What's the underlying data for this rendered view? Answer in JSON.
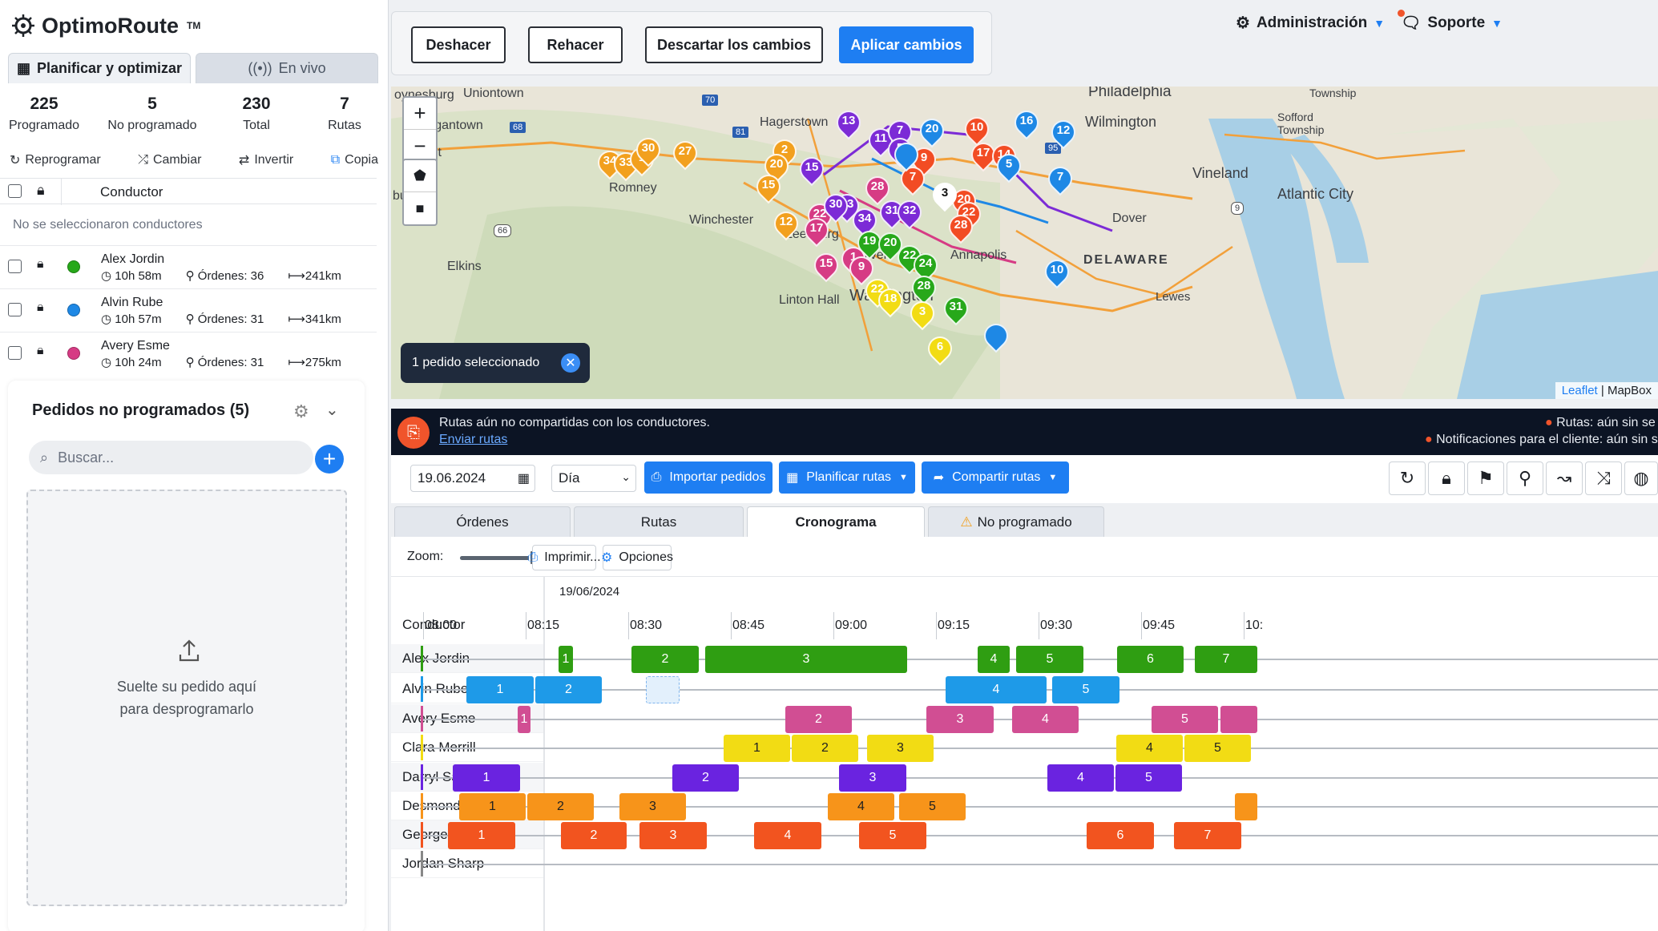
{
  "app": {
    "name": "OptimoRoute",
    "tm": "TM"
  },
  "left_tabs": {
    "plan": "Planificar y optimizar",
    "live": "En vivo"
  },
  "stats": [
    {
      "value": "225",
      "label": "Programado"
    },
    {
      "value": "5",
      "label": "No programado"
    },
    {
      "value": "230",
      "label": "Total"
    },
    {
      "value": "7",
      "label": "Rutas"
    }
  ],
  "actions": {
    "reschedule": "Reprogramar",
    "swap": "Cambiar",
    "reverse": "Invertir",
    "copy": "Copia"
  },
  "driver_header": "Conductor",
  "no_selection": "No se seleccionaron conductores",
  "drivers": [
    {
      "name": "Alex Jordin",
      "time": "10h 58m",
      "orders": "Órdenes: 36",
      "dist": "241km",
      "color": "#27a81a"
    },
    {
      "name": "Alvin Rube",
      "time": "10h 57m",
      "orders": "Órdenes: 31",
      "dist": "341km",
      "color": "#1e88e5"
    },
    {
      "name": "Avery Esme",
      "time": "10h 24m",
      "orders": "Órdenes: 31",
      "dist": "275km",
      "color": "#d63b84"
    }
  ],
  "unscheduled": {
    "title": "Pedidos no programados (5)",
    "search_placeholder": "Buscar...",
    "drop_line1": "Suelte su pedido aquí",
    "drop_line2": "para desprogramarlo"
  },
  "toolbar": {
    "undo": "Deshacer",
    "redo": "Rehacer",
    "discard": "Descartar los cambios",
    "apply": "Aplicar cambios"
  },
  "topnav": {
    "admin": "Administración",
    "support": "Soporte"
  },
  "map": {
    "labels": [
      "oynesburg",
      "Uniontown",
      "organtown",
      "Romney",
      "Winchester",
      "Leesburg",
      "Hagerstown",
      "Washington",
      "Linton Hall",
      "Silver",
      "Annapolis",
      "Philadelphia",
      "Wilmington",
      "Vineland",
      "Dover",
      "DELAWARE",
      "Atlantic City",
      "Township",
      "Sofford Township",
      "Lewes",
      "int",
      "burg",
      "Elkins",
      "ing"
    ],
    "selected_badge": "1 pedido seleccionado",
    "attribution_leaflet": "Leaflet",
    "attribution_mapbox": "MapBox",
    "road_badges": [
      "70",
      "68",
      "81",
      "66",
      "95",
      "9"
    ]
  },
  "banner": {
    "text": "Rutas aún no compartidas con los conductores.",
    "link": "Enviar rutas",
    "right1": "Rutas: aún sin se",
    "right2": "Notificaciones para el cliente: aún sin se"
  },
  "filters": {
    "date": "19.06.2024",
    "period": "Día",
    "import": "Importar pedidos",
    "plan": "Planificar rutas",
    "share": "Compartir rutas"
  },
  "view_tabs": {
    "orders": "Órdenes",
    "routes": "Rutas",
    "schedule": "Cronograma",
    "unscheduled": "No programado"
  },
  "zoombar": {
    "zoom": "Zoom:",
    "print": "Imprimir...",
    "options": "Opciones"
  },
  "timeline": {
    "date": "19/06/2024",
    "conductor": "Conductor",
    "hours": [
      "08:00",
      "08:15",
      "08:30",
      "08:45",
      "09:00",
      "09:15",
      "09:30",
      "09:45",
      "10:"
    ],
    "rows": [
      {
        "name": "Alex Jordin",
        "color": "#2f9e12",
        "stops": [
          [
            "1",
            697,
            715
          ],
          [
            "2",
            788,
            872
          ],
          [
            "3",
            880,
            1132
          ],
          [
            "4",
            1220,
            1260
          ],
          [
            "5",
            1268,
            1352
          ],
          [
            "6",
            1394,
            1477
          ],
          [
            "7",
            1491,
            1569
          ]
        ]
      },
      {
        "name": "Alvin Rube",
        "color": "#1e9ae8",
        "stops": [
          [
            "1",
            582,
            666
          ],
          [
            "2",
            668,
            751
          ],
          [
            "4",
            1180,
            1306
          ],
          [
            "5",
            1313,
            1397
          ]
        ]
      },
      {
        "name": "Avery Esme",
        "color": "#d14e93",
        "stops": [
          [
            "1",
            646,
            662
          ],
          [
            "2",
            980,
            1063
          ],
          [
            "3",
            1156,
            1240
          ],
          [
            "4",
            1263,
            1346
          ],
          [
            "5",
            1437,
            1520
          ],
          [
            "",
            1523,
            1569
          ]
        ]
      },
      {
        "name": "Clara Merrill",
        "color": "#f2dc14",
        "dark": true,
        "stops": [
          [
            "1",
            903,
            986
          ],
          [
            "2",
            988,
            1071
          ],
          [
            "3",
            1082,
            1165
          ],
          [
            "4",
            1393,
            1476
          ],
          [
            "5",
            1478,
            1561
          ]
        ]
      },
      {
        "name": "Darryl Sawyer",
        "color": "#6a23e0",
        "stops": [
          [
            "1",
            565,
            649
          ],
          [
            "2",
            839,
            922
          ],
          [
            "3",
            1047,
            1131
          ],
          [
            "4",
            1307,
            1390
          ],
          [
            "5",
            1392,
            1475
          ]
        ]
      },
      {
        "name": "Desmond Vladimir",
        "color": "#f7941a",
        "dark": true,
        "stops": [
          [
            "1",
            573,
            656
          ],
          [
            "2",
            658,
            741
          ],
          [
            "3",
            773,
            856
          ],
          [
            "4",
            1033,
            1116
          ],
          [
            "5",
            1122,
            1205
          ],
          [
            "",
            1541,
            1569
          ]
        ]
      },
      {
        "name": "George Cooper",
        "color": "#f2541f",
        "stops": [
          [
            "1",
            559,
            643
          ],
          [
            "2",
            700,
            782
          ],
          [
            "3",
            798,
            882
          ],
          [
            "4",
            941,
            1025
          ],
          [
            "5",
            1072,
            1156
          ],
          [
            "6",
            1356,
            1440
          ],
          [
            "7",
            1465,
            1549
          ]
        ]
      },
      {
        "name": "Jordan Sharp",
        "color": "#888888",
        "stops": []
      }
    ]
  }
}
